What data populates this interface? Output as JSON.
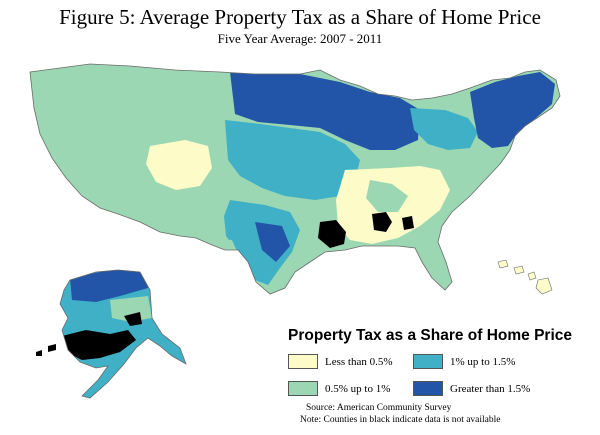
{
  "figure": {
    "title": "Figure 5: Average Property Tax as a Share of Home Price",
    "subtitle": "Five Year Average: 2007 - 2011"
  },
  "legend": {
    "title": "Property Tax as a Share of Home Price",
    "items": [
      {
        "label": "Less than 0.5%",
        "color": "#fdfbc8"
      },
      {
        "label": "1% up to 1.5%",
        "color": "#3fb0c6"
      },
      {
        "label": "0.5% up to 1%",
        "color": "#9bd7b2"
      },
      {
        "label": "Greater than 1.5%",
        "color": "#2255a8"
      }
    ]
  },
  "notes": {
    "source": "Source: American Community Survey",
    "na_note": "Note: Counties in black indicate data is not available"
  },
  "colors": {
    "less_than_0_5": "#fdfbc8",
    "from_0_5_to_1": "#9bd7b2",
    "from_1_to_1_5": "#3fb0c6",
    "greater_than_1_5": "#2255a8",
    "not_available": "#000000",
    "border": "#6a6a6a"
  }
}
